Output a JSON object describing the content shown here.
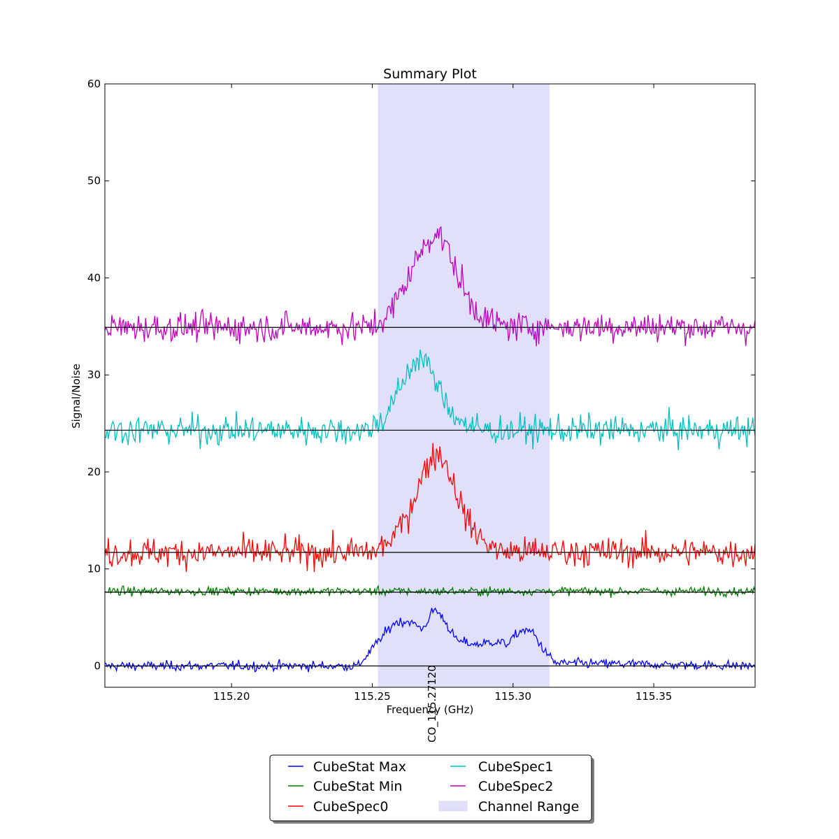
{
  "chart_data": {
    "type": "line",
    "title": "Summary Plot",
    "xlabel": "Frequency (GHz)",
    "ylabel": "Signal/Noise",
    "xlim": [
      115.155,
      115.386
    ],
    "ylim": [
      -2.2,
      60
    ],
    "xticks": [
      115.2,
      115.25,
      115.3,
      115.35
    ],
    "xtick_labels": [
      "115.20",
      "115.25",
      "115.30",
      "115.35"
    ],
    "yticks": [
      0,
      10,
      20,
      30,
      40,
      50,
      60
    ],
    "ytick_labels": [
      "0",
      "10",
      "20",
      "30",
      "40",
      "50",
      "60"
    ],
    "grid": false,
    "legend_position": "bottom-center",
    "legend_columns": 2,
    "channel_range": {
      "label": "Channel Range",
      "x": [
        115.252,
        115.313
      ],
      "color": "#e0e0fb"
    },
    "line_markers": [
      {
        "label": "CO_115.27120",
        "x": 115.2712
      }
    ],
    "series": [
      {
        "name": "CubeStat Max",
        "color": "#0000ff",
        "baseline": 0,
        "x": [
          115.155,
          115.245,
          115.252,
          115.258,
          115.263,
          115.268,
          115.272,
          115.275,
          115.28,
          115.287,
          115.293,
          115.298,
          115.303,
          115.307,
          115.311,
          115.315,
          115.386
        ],
        "values": [
          0,
          0,
          2.5,
          4.5,
          4.6,
          3.8,
          5.9,
          5.0,
          2.6,
          2.2,
          2.5,
          2.3,
          3.7,
          3.5,
          1.6,
          0.3,
          0
        ]
      },
      {
        "name": "CubeStat Min",
        "color": "#007f00",
        "baseline": 7.6,
        "x": [
          115.155,
          115.386
        ],
        "values": [
          7.7,
          7.7
        ]
      },
      {
        "name": "CubeSpec0",
        "color": "#ff0000",
        "baseline": 11.7,
        "x": [
          115.155,
          115.25,
          115.256,
          115.262,
          115.267,
          115.271,
          115.274,
          115.277,
          115.281,
          115.285,
          115.29,
          115.295,
          115.386
        ],
        "values": [
          11.7,
          11.7,
          12.8,
          15.2,
          19.0,
          21.6,
          22.0,
          20.3,
          17.0,
          14.3,
          12.8,
          11.8,
          11.7
        ]
      },
      {
        "name": "CubeSpec1",
        "color": "#00bfbf",
        "baseline": 24.3,
        "x": [
          115.155,
          115.248,
          115.254,
          115.259,
          115.263,
          115.266,
          115.269,
          115.272,
          115.276,
          115.281,
          115.287,
          115.292,
          115.386
        ],
        "values": [
          24.3,
          24.3,
          25.5,
          28.0,
          30.5,
          31.8,
          31.5,
          29.5,
          27.2,
          25.3,
          24.4,
          24.3,
          24.3
        ]
      },
      {
        "name": "CubeSpec2",
        "color": "#bf00bf",
        "baseline": 34.9,
        "x": [
          115.155,
          115.25,
          115.256,
          115.261,
          115.266,
          115.27,
          115.273,
          115.276,
          115.28,
          115.285,
          115.291,
          115.297,
          115.386
        ],
        "values": [
          34.9,
          34.9,
          36.3,
          39.0,
          42.0,
          44.0,
          44.8,
          43.5,
          40.5,
          37.3,
          35.6,
          35.0,
          34.9
        ]
      }
    ]
  }
}
